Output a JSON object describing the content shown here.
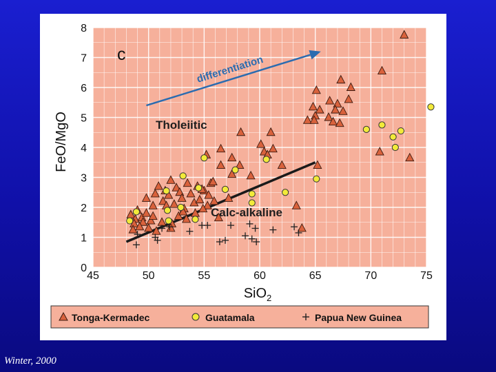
{
  "slide": {
    "credit": "Winter, 2000"
  },
  "chart_data": {
    "type": "scatter",
    "panel_label": "c",
    "xlabel": "SiO",
    "xlabel_sub": "2",
    "ylabel": "FeO/MgO",
    "xlim": [
      45,
      75
    ],
    "ylim": [
      0,
      8
    ],
    "xticks": [
      45,
      50,
      55,
      60,
      65,
      70,
      75
    ],
    "yticks": [
      0,
      1,
      2,
      3,
      4,
      5,
      6,
      7,
      8
    ],
    "grid": true,
    "annotations": {
      "differentiation": "differentiation",
      "tholeiitic": "Tholeiitic",
      "calc_alkaline": "Calc-alkaline"
    },
    "divider_line": [
      [
        48.0,
        0.85
      ],
      [
        65.0,
        3.5
      ]
    ],
    "arrow": [
      [
        49.8,
        5.4
      ],
      [
        65.5,
        7.2
      ]
    ],
    "colors": {
      "plot_bg": "#f6b09b",
      "grid": "#ffffff",
      "tonga_fill": "#d9623c",
      "guatemala_fill": "#f2ea3a",
      "arrow": "#2b6cb0",
      "line": "#1a1a1a"
    },
    "legend": {
      "placement": "bottom",
      "entries": [
        {
          "name": "Tonga-Kermadec",
          "marker": "triangle"
        },
        {
          "name": "Guatamala",
          "marker": "circle"
        },
        {
          "name": "Papua New Guinea",
          "marker": "plus"
        }
      ]
    },
    "series": [
      {
        "name": "Tonga-Kermadec",
        "marker": "triangle",
        "points": [
          [
            73.0,
            7.75
          ],
          [
            71.0,
            6.55
          ],
          [
            67.3,
            6.25
          ],
          [
            68.2,
            6.0
          ],
          [
            65.1,
            5.9
          ],
          [
            66.3,
            5.55
          ],
          [
            67.0,
            5.45
          ],
          [
            64.8,
            5.35
          ],
          [
            65.4,
            5.25
          ],
          [
            66.8,
            5.25
          ],
          [
            68.0,
            5.6
          ],
          [
            67.5,
            5.2
          ],
          [
            65.0,
            5.05
          ],
          [
            66.2,
            5.0
          ],
          [
            64.3,
            4.9
          ],
          [
            64.9,
            4.9
          ],
          [
            66.6,
            4.85
          ],
          [
            67.2,
            4.8
          ],
          [
            58.3,
            4.5
          ],
          [
            61.0,
            4.5
          ],
          [
            60.1,
            4.1
          ],
          [
            61.2,
            3.95
          ],
          [
            56.5,
            3.95
          ],
          [
            60.4,
            3.85
          ],
          [
            60.7,
            3.75
          ],
          [
            55.2,
            3.75
          ],
          [
            57.5,
            3.65
          ],
          [
            58.2,
            3.4
          ],
          [
            56.5,
            3.4
          ],
          [
            62.0,
            3.4
          ],
          [
            65.2,
            3.4
          ],
          [
            57.5,
            3.1
          ],
          [
            59.2,
            3.05
          ],
          [
            70.8,
            3.85
          ],
          [
            73.5,
            3.65
          ],
          [
            63.3,
            2.05
          ],
          [
            63.8,
            1.3
          ],
          [
            48.4,
            1.75
          ],
          [
            48.8,
            1.6
          ],
          [
            49.0,
            1.9
          ],
          [
            49.4,
            1.65
          ],
          [
            49.5,
            1.5
          ],
          [
            49.8,
            1.8
          ],
          [
            50.2,
            1.55
          ],
          [
            50.4,
            2.05
          ],
          [
            50.6,
            2.45
          ],
          [
            50.9,
            2.7
          ],
          [
            51.3,
            2.2
          ],
          [
            51.5,
            2.55
          ],
          [
            51.8,
            2.4
          ],
          [
            52.0,
            2.9
          ],
          [
            52.3,
            2.1
          ],
          [
            52.5,
            2.65
          ],
          [
            52.8,
            2.5
          ],
          [
            53.0,
            2.3
          ],
          [
            53.2,
            1.95
          ],
          [
            53.5,
            2.8
          ],
          [
            53.8,
            2.45
          ],
          [
            54.1,
            2.15
          ],
          [
            54.4,
            2.7
          ],
          [
            54.6,
            2.25
          ],
          [
            55.0,
            2.55
          ],
          [
            55.3,
            2.05
          ],
          [
            55.6,
            2.8
          ],
          [
            55.9,
            2.2
          ],
          [
            48.7,
            1.45
          ],
          [
            49.2,
            1.35
          ],
          [
            50.0,
            1.3
          ],
          [
            50.7,
            1.2
          ],
          [
            51.2,
            1.5
          ],
          [
            52.1,
            1.45
          ],
          [
            52.7,
            1.7
          ],
          [
            53.4,
            1.6
          ],
          [
            54.2,
            1.8
          ],
          [
            55.4,
            2.4
          ],
          [
            51.6,
            2.05
          ],
          [
            53.1,
            1.85
          ],
          [
            54.8,
            2.6
          ],
          [
            57.2,
            2.3
          ],
          [
            56.3,
            1.65
          ],
          [
            49.8,
            2.3
          ],
          [
            48.6,
            1.25
          ],
          [
            52.0,
            1.3
          ],
          [
            55.8,
            2.85
          ],
          [
            50.4,
            1.7
          ],
          [
            54.9,
            1.95
          ]
        ]
      },
      {
        "name": "Guatamala",
        "marker": "circle",
        "points": [
          [
            75.4,
            5.35
          ],
          [
            71.0,
            4.75
          ],
          [
            69.6,
            4.6
          ],
          [
            72.7,
            4.55
          ],
          [
            72.0,
            4.35
          ],
          [
            72.2,
            4.0
          ],
          [
            60.6,
            3.6
          ],
          [
            55.0,
            3.65
          ],
          [
            57.8,
            3.25
          ],
          [
            53.1,
            3.05
          ],
          [
            54.5,
            2.65
          ],
          [
            56.9,
            2.6
          ],
          [
            51.6,
            2.55
          ],
          [
            59.3,
            2.45
          ],
          [
            62.3,
            2.5
          ],
          [
            59.3,
            2.15
          ],
          [
            65.1,
            2.95
          ],
          [
            52.9,
            2.0
          ],
          [
            51.7,
            1.9
          ],
          [
            48.9,
            1.85
          ],
          [
            54.2,
            1.6
          ],
          [
            51.8,
            1.55
          ],
          [
            48.3,
            1.55
          ]
        ]
      },
      {
        "name": "Papua New Guinea",
        "marker": "plus",
        "points": [
          [
            48.9,
            0.75
          ],
          [
            50.6,
            1.0
          ],
          [
            50.8,
            0.9
          ],
          [
            51.9,
            1.35
          ],
          [
            53.7,
            1.2
          ],
          [
            54.8,
            1.4
          ],
          [
            55.3,
            1.4
          ],
          [
            56.4,
            0.85
          ],
          [
            56.9,
            0.9
          ],
          [
            57.4,
            1.4
          ],
          [
            58.7,
            1.05
          ],
          [
            59.1,
            1.45
          ],
          [
            59.3,
            0.95
          ],
          [
            59.7,
            0.85
          ],
          [
            59.6,
            1.3
          ],
          [
            61.2,
            1.25
          ],
          [
            63.1,
            1.35
          ],
          [
            63.5,
            1.15
          ],
          [
            51.2,
            1.3
          ],
          [
            49.0,
            1.1
          ]
        ]
      }
    ]
  }
}
